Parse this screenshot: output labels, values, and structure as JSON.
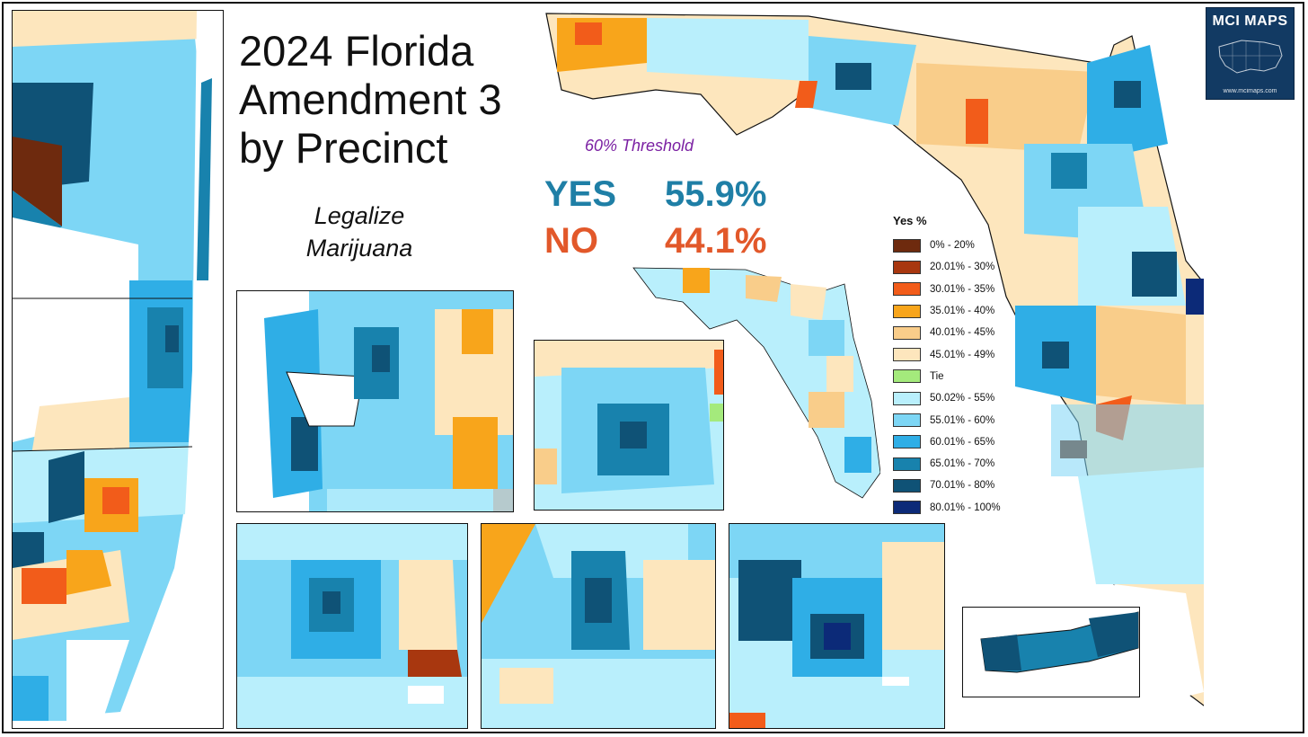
{
  "title": {
    "line1": "2024 Florida",
    "line2": "Amendment 3",
    "line3": "by Precinct"
  },
  "subtitle": {
    "line1": "Legalize",
    "line2": "Marijuana"
  },
  "threshold_label": "60% Threshold",
  "results": {
    "yes_label": "YES",
    "yes_value": "55.9%",
    "no_label": "NO",
    "no_value": "44.1%"
  },
  "legend": {
    "title": "Yes  %",
    "items": [
      {
        "label": "0% - 20%",
        "color": "#6e2a0e"
      },
      {
        "label": "20.01% - 30%",
        "color": "#a8370f"
      },
      {
        "label": "30.01% - 35%",
        "color": "#f25c1a"
      },
      {
        "label": "35.01% - 40%",
        "color": "#f8a51b"
      },
      {
        "label": "40.01% - 45%",
        "color": "#f9cd8a"
      },
      {
        "label": "45.01% - 49%",
        "color": "#fde6bd"
      },
      {
        "label": "Tie",
        "color": "#a4ea7c"
      },
      {
        "label": "50.02% - 55%",
        "color": "#b9effc"
      },
      {
        "label": "55.01% - 60%",
        "color": "#7dd6f5"
      },
      {
        "label": "60.01% - 65%",
        "color": "#2faee6"
      },
      {
        "label": "65.01% - 70%",
        "color": "#1882ad"
      },
      {
        "label": "70.01% - 80%",
        "color": "#0f5276"
      },
      {
        "label": "80.01% - 100%",
        "color": "#0c2a78"
      }
    ]
  },
  "branding": {
    "name": "MCI MAPS",
    "url": "www.mcimaps.com"
  }
}
